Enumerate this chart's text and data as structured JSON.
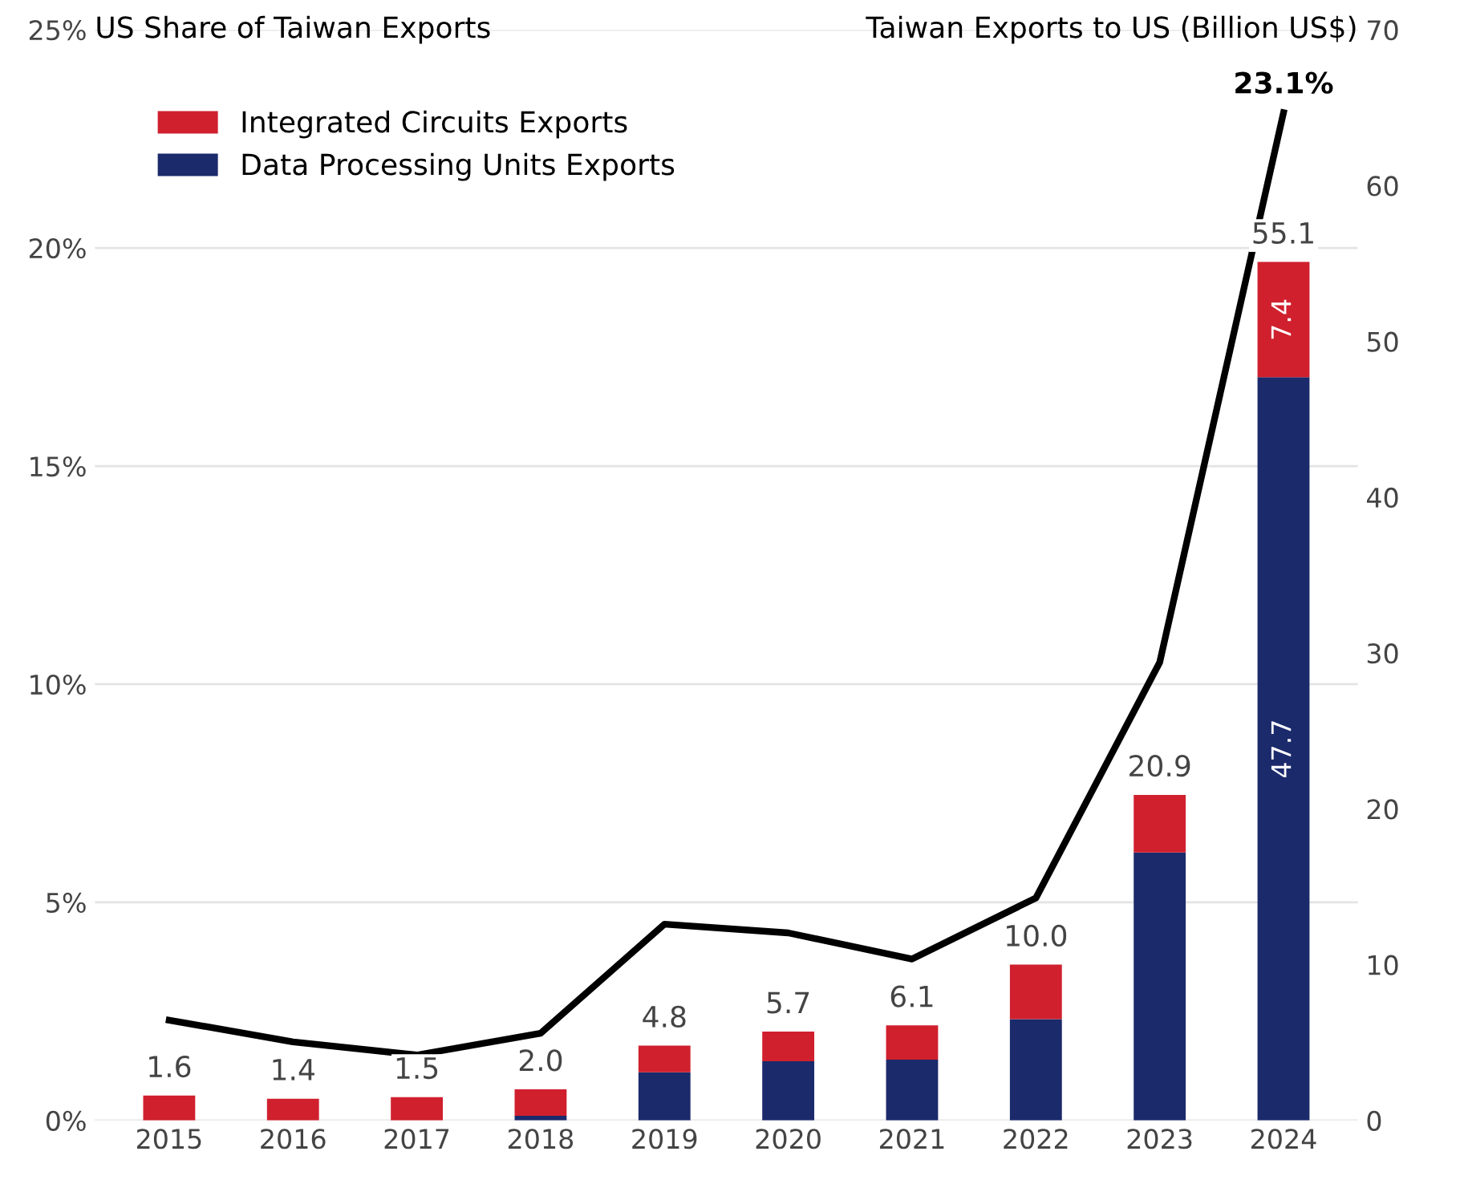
{
  "chart_data": {
    "type": "bar",
    "stacked": true,
    "categories": [
      "2015",
      "2016",
      "2017",
      "2018",
      "2019",
      "2020",
      "2021",
      "2022",
      "2023",
      "2024"
    ],
    "series": [
      {
        "name": "Data Processing Units Exports",
        "color": "#1b2a6b",
        "axis": "y2",
        "values": [
          0,
          0,
          0,
          0.3,
          3.1,
          3.8,
          3.9,
          6.5,
          17.2,
          47.7
        ],
        "value_labels": [
          null,
          null,
          null,
          null,
          null,
          null,
          null,
          null,
          null,
          "47.7"
        ]
      },
      {
        "name": "Integrated Circuits Exports",
        "color": "#d0202e",
        "axis": "y2",
        "values": [
          1.6,
          1.4,
          1.5,
          1.7,
          1.7,
          1.9,
          2.2,
          3.5,
          3.7,
          7.4
        ],
        "value_labels": [
          null,
          null,
          null,
          null,
          null,
          null,
          null,
          null,
          null,
          "7.4"
        ]
      },
      {
        "type": "line",
        "color": "#000000",
        "axis": "y",
        "values": [
          2.3,
          1.8,
          1.5,
          2.0,
          4.5,
          4.3,
          3.7,
          5.1,
          10.5,
          23.1
        ]
      }
    ],
    "totals": [
      "1.6",
      "1.4",
      "1.5",
      "2.0",
      "4.8",
      "5.7",
      "6.1",
      "10.0",
      "20.9",
      "55.1"
    ],
    "annotations": [
      {
        "text": "23.1%",
        "x": "2024",
        "y": 23.1
      }
    ],
    "ylabel": "US Share of Taiwan Exports",
    "y2label": "Taiwan Exports to US (Billion US$)",
    "ylim": [
      0,
      25
    ],
    "yticks": [
      {
        "value": 0,
        "label": "0%"
      },
      {
        "value": 5,
        "label": "5%"
      },
      {
        "value": 10,
        "label": "10%"
      },
      {
        "value": 15,
        "label": "15%"
      },
      {
        "value": 20,
        "label": "20%"
      },
      {
        "value": 25,
        "label": "25%"
      }
    ],
    "y2lim": [
      0,
      70
    ],
    "y2ticks": [
      0,
      10,
      20,
      30,
      40,
      50,
      60,
      70
    ],
    "grid": "y",
    "legend": "top left"
  }
}
